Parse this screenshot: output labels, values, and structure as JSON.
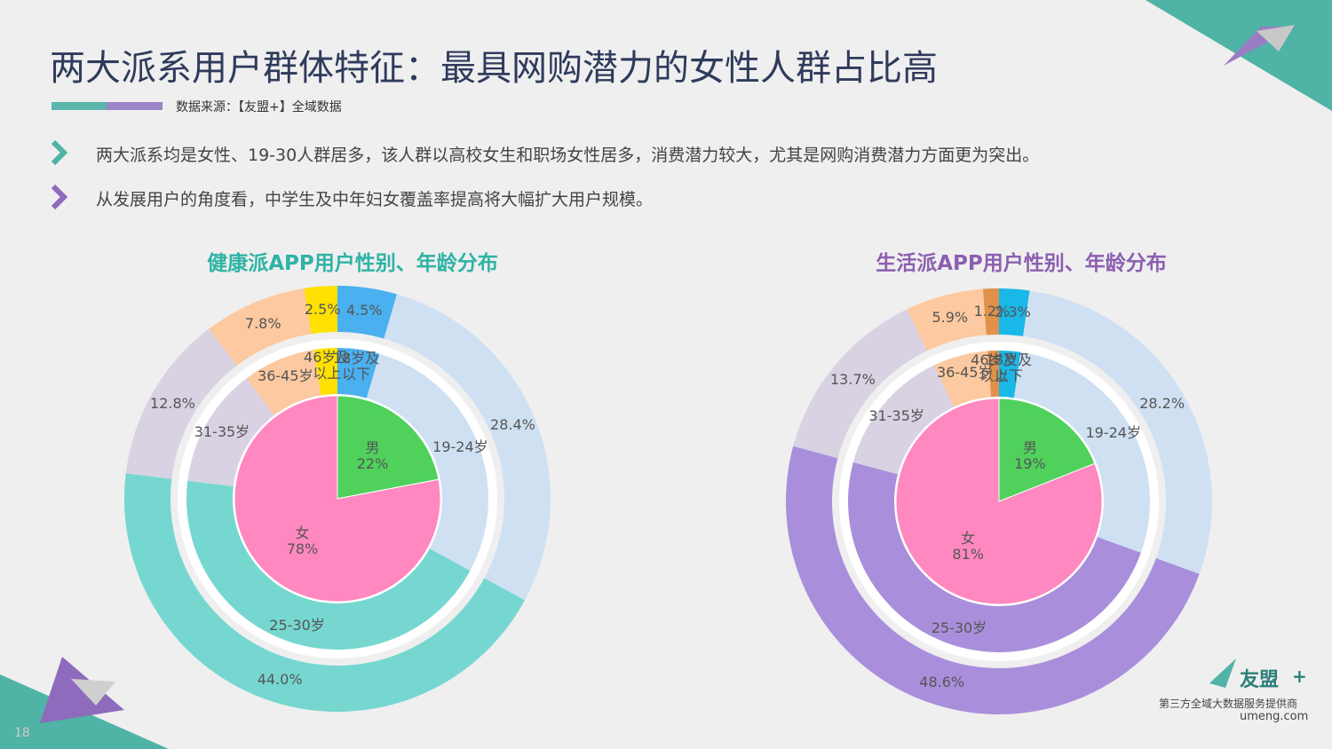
{
  "title": "两大派系用户群体特征：最具网购潜力的女性人群占比高",
  "source": "数据来源：【友盟+】全域数据",
  "bullets": [
    "两大派系均是女性、19-30人群居多，该人群以高校女生和职场女性居多，消费潜力较大，尤其是网购消费潜力方面更为突出。",
    "从发展用户的角度看，中学生及中年妇女覆盖率提高将大幅扩大用户规模。"
  ],
  "chart_data": [
    {
      "type": "nested-pie",
      "title": "健康派APP用户性别、年龄分布",
      "title_color": "#2fb3a5",
      "categories": [
        "18岁及\n以下",
        "19-24岁",
        "25-30岁",
        "31-35岁",
        "36-45岁",
        "46岁及\n以上"
      ],
      "values": [
        4.5,
        28.4,
        44.0,
        12.8,
        7.8,
        2.5
      ],
      "value_labels": [
        "4.5%",
        "28.4%",
        "44.0%",
        "12.8%",
        "7.8%",
        "2.5%"
      ],
      "colors": [
        "#4ab0f0",
        "#cfe0f3",
        "#76d7d0",
        "#d9d2e3",
        "#fcc9a0",
        "#ffe000"
      ],
      "gender_categories": [
        "男",
        "女"
      ],
      "gender_values": [
        22,
        78
      ],
      "gender_value_labels": [
        "22%",
        "78%"
      ],
      "gender_colors": [
        "#4fd15c",
        "#ff88c0"
      ]
    },
    {
      "type": "nested-pie",
      "title": "生活派APP用户性别、年龄分布",
      "title_color": "#8c5fb0",
      "categories": [
        "18岁及\n以下",
        "19-24岁",
        "25-30岁",
        "31-35岁",
        "36-45岁",
        "46岁及\n以上"
      ],
      "values": [
        2.3,
        28.2,
        48.6,
        13.7,
        5.9,
        1.2
      ],
      "value_labels": [
        "2.3%",
        "28.2%",
        "48.6%",
        "13.7%",
        "5.9%",
        "1.2%"
      ],
      "colors": [
        "#1ab8e8",
        "#cfe0f3",
        "#a98fdb",
        "#d9d2e3",
        "#fcc9a0",
        "#e0924a"
      ],
      "gender_categories": [
        "男",
        "女"
      ],
      "gender_values": [
        19,
        81
      ],
      "gender_value_labels": [
        "19%",
        "81%"
      ],
      "gender_colors": [
        "#4fd15c",
        "#ff88c0"
      ]
    }
  ],
  "logo": "友盟",
  "logo_plus": "+",
  "tagline": "第三方全域大数据服务提供商",
  "site": "umeng.com",
  "page_number": "18"
}
